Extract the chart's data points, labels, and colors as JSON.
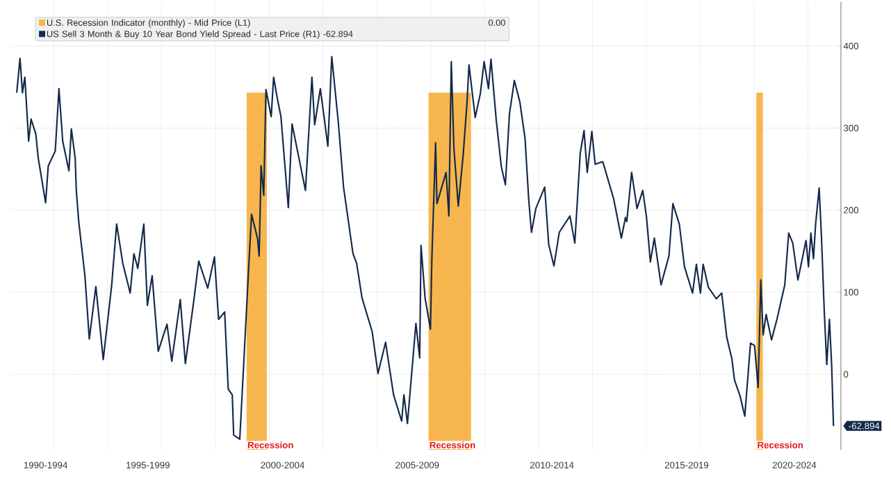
{
  "chart_data": {
    "type": "line",
    "xlim": [
      "1992-06-06",
      "2023-03-24"
    ],
    "ylim": [
      -92,
      454
    ],
    "xticks": [
      {
        "value": "1993-09-13",
        "label": "1990-1994"
      },
      {
        "value": "1997-07-01",
        "label": "1995-1999"
      },
      {
        "value": "2002-07-01",
        "label": "2000-2004"
      },
      {
        "value": "2007-07-01",
        "label": "2005-2009"
      },
      {
        "value": "2012-07-01",
        "label": "2010-2014"
      },
      {
        "value": "2017-07-01",
        "label": "2015-2019"
      },
      {
        "value": "2021-07-01",
        "label": "2020-2024"
      },
      {
        "value": "1994-01-01",
        "label": null
      },
      {
        "value": "1996-01-01",
        "label": null
      },
      {
        "value": "1998-01-01",
        "label": null
      },
      {
        "value": "2000-01-01",
        "label": null
      },
      {
        "value": "2002-01-01",
        "label": null
      },
      {
        "value": "2004-01-01",
        "label": null
      },
      {
        "value": "2006-01-01",
        "label": null
      },
      {
        "value": "2008-01-01",
        "label": null
      },
      {
        "value": "2010-01-01",
        "label": null
      },
      {
        "value": "2012-01-01",
        "label": null
      },
      {
        "value": "2014-01-01",
        "label": null
      },
      {
        "value": "2016-01-01",
        "label": null
      },
      {
        "value": "2018-01-01",
        "label": null
      },
      {
        "value": "2020-01-01",
        "label": null
      },
      {
        "value": "2022-01-01",
        "label": null
      }
    ],
    "yticks": [
      0,
      100,
      200,
      300,
      400
    ],
    "grid": true,
    "legend": "top left",
    "series": [
      {
        "name": "US Sell 3 Month & Buy 10 Year Bond Yield Spread - Last Price (R1) -62.894",
        "color": "#13294b",
        "x": [
          "1992-08-18",
          "1992-10-01",
          "1992-11-03",
          "1992-12-06",
          "1993-01-26",
          "1993-02-28",
          "1993-05-03",
          "1993-06-06",
          "1993-09-13",
          "1993-10-19",
          "1994-01-22",
          "1994-03-13",
          "1994-05-03",
          "1994-07-26",
          "1994-08-28",
          "1994-10-19",
          "1994-11-03",
          "1994-12-06",
          "1995-02-28",
          "1995-04-28",
          "1995-07-26",
          "1995-11-03",
          "1996-02-25",
          "1996-05-03",
          "1996-07-26",
          "1996-11-03",
          "1996-12-24",
          "1997-02-14",
          "1997-05-07",
          "1997-06-24",
          "1997-08-28",
          "1997-11-18",
          "1998-03-17",
          "1998-05-21",
          "1998-09-13",
          "1998-11-21",
          "1999-03-17",
          "1999-05-21",
          "1999-09-20",
          "1999-12-20",
          "2000-02-14",
          "2000-05-07",
          "2000-06-24",
          "2000-08-18",
          "2000-09-06",
          "2000-11-28",
          "2001-01-12",
          "2001-04-01",
          "2001-05-07",
          "2001-07-28",
          "2001-08-18",
          "2001-09-13",
          "2001-10-19",
          "2001-11-18",
          "2002-01-28",
          "2002-03-02",
          "2002-04-19",
          "2002-06-09",
          "2002-09-17",
          "2002-11-07",
          "2003-05-07",
          "2003-08-03",
          "2003-09-09",
          "2003-11-25",
          "2004-03-06",
          "2004-04-28",
          "2004-07-26",
          "2004-10-05",
          "2005-02-10",
          "2005-04-01",
          "2005-06-13",
          "2005-10-28",
          "2006-01-15",
          "2006-04-28",
          "2006-08-14",
          "2006-12-02",
          "2007-01-01",
          "2007-02-18",
          "2007-06-13",
          "2007-08-03",
          "2007-08-21",
          "2007-10-15",
          "2007-12-27",
          "2008-01-15",
          "2008-03-06",
          "2008-03-24",
          "2008-07-26",
          "2008-09-02",
          "2008-10-05",
          "2008-11-10",
          "2009-01-08",
          "2009-03-17",
          "2009-05-07",
          "2009-06-02",
          "2009-08-25",
          "2009-11-03",
          "2009-12-24",
          "2010-02-21",
          "2010-03-27",
          "2010-06-06",
          "2010-08-14",
          "2010-10-08",
          "2010-12-02",
          "2011-02-07",
          "2011-04-22",
          "2011-07-01",
          "2011-08-21",
          "2011-09-27",
          "2011-11-25",
          "2012-03-24",
          "2012-05-18",
          "2012-07-28",
          "2012-10-08",
          "2013-03-02",
          "2013-05-07",
          "2013-06-13",
          "2013-07-19",
          "2013-09-09",
          "2013-10-22",
          "2013-12-24",
          "2014-02-07",
          "2014-05-21",
          "2014-10-15",
          "2015-01-28",
          "2015-03-24",
          "2015-04-11",
          "2015-06-16",
          "2015-08-28",
          "2015-11-14",
          "2016-01-04",
          "2016-02-25",
          "2016-04-19",
          "2016-07-19",
          "2016-11-03",
          "2016-12-27",
          "2017-03-24",
          "2017-06-02",
          "2017-09-20",
          "2017-11-10",
          "2018-01-04",
          "2018-02-10",
          "2018-04-22",
          "2018-08-07",
          "2018-10-19",
          "2018-12-27",
          "2019-03-06",
          "2019-04-11",
          "2019-06-24",
          "2019-08-28",
          "2019-11-14",
          "2020-01-08",
          "2020-02-25",
          "2020-04-01",
          "2020-05-03",
          "2020-06-13",
          "2020-08-25",
          "2020-11-07",
          "2021-02-21",
          "2021-04-15",
          "2021-06-09",
          "2021-08-18",
          "2021-12-06",
          "2022-01-08",
          "2022-02-10",
          "2022-03-17",
          "2022-04-15",
          "2022-06-02",
          "2022-07-04",
          "2022-08-10",
          "2022-09-13",
          "2022-10-19",
          "2022-11-18",
          "2022-12-13"
        ],
        "values": [
          343,
          385,
          343,
          362,
          284,
          311,
          293,
          263,
          209,
          254,
          272,
          348,
          284,
          248,
          299,
          263,
          224,
          186,
          120,
          43,
          107,
          18,
          108,
          183,
          135,
          99,
          147,
          129,
          183,
          84,
          120,
          28,
          61,
          16,
          91,
          13,
          91,
          138,
          105,
          143,
          67,
          76,
          -18,
          -25,
          -74,
          -79,
          -2,
          135,
          195,
          165,
          144,
          254,
          218,
          347,
          314,
          362,
          337,
          314,
          203,
          305,
          224,
          362,
          304,
          348,
          278,
          387,
          307,
          228,
          147,
          135,
          93,
          52,
          1,
          39,
          -25,
          -57,
          -25,
          -60,
          62,
          20,
          157,
          93,
          55,
          141,
          282,
          208,
          246,
          193,
          381,
          275,
          205,
          269,
          332,
          377,
          313,
          342,
          381,
          348,
          384,
          310,
          253,
          231,
          317,
          358,
          332,
          288,
          212,
          173,
          202,
          228,
          158,
          132,
          173,
          193,
          160,
          215,
          269,
          297,
          246,
          296,
          256,
          259,
          214,
          166,
          191,
          186,
          246,
          202,
          224,
          191,
          137,
          166,
          109,
          144,
          208,
          183,
          131,
          99,
          134,
          99,
          134,
          106,
          92,
          99,
          45,
          19,
          -7,
          -26,
          -51,
          38,
          35,
          -16,
          115,
          48,
          73,
          42,
          67,
          109,
          172,
          160,
          115,
          163,
          131,
          172,
          141,
          183,
          227,
          166,
          77,
          12,
          67,
          12,
          -62.894
        ]
      }
    ],
    "bands": [
      {
        "axis": "x",
        "from": "2001-03-01",
        "to": "2001-11-30",
        "label": "Recession",
        "color": "#f7b64d"
      },
      {
        "axis": "x",
        "from": "2007-12-01",
        "to": "2009-06-30",
        "label": "Recession",
        "color": "#f7b64d"
      },
      {
        "axis": "x",
        "from": "2020-02-01",
        "to": "2020-04-30",
        "label": "Recession",
        "color": "#f7b64d"
      }
    ],
    "annotations": [
      "U.S. Recession Indicator (monthly) - Mid Price (L1)",
      "0.00",
      {
        "text": "-62.894",
        "x": "2022-12-13",
        "y": -62.894
      }
    ]
  }
}
